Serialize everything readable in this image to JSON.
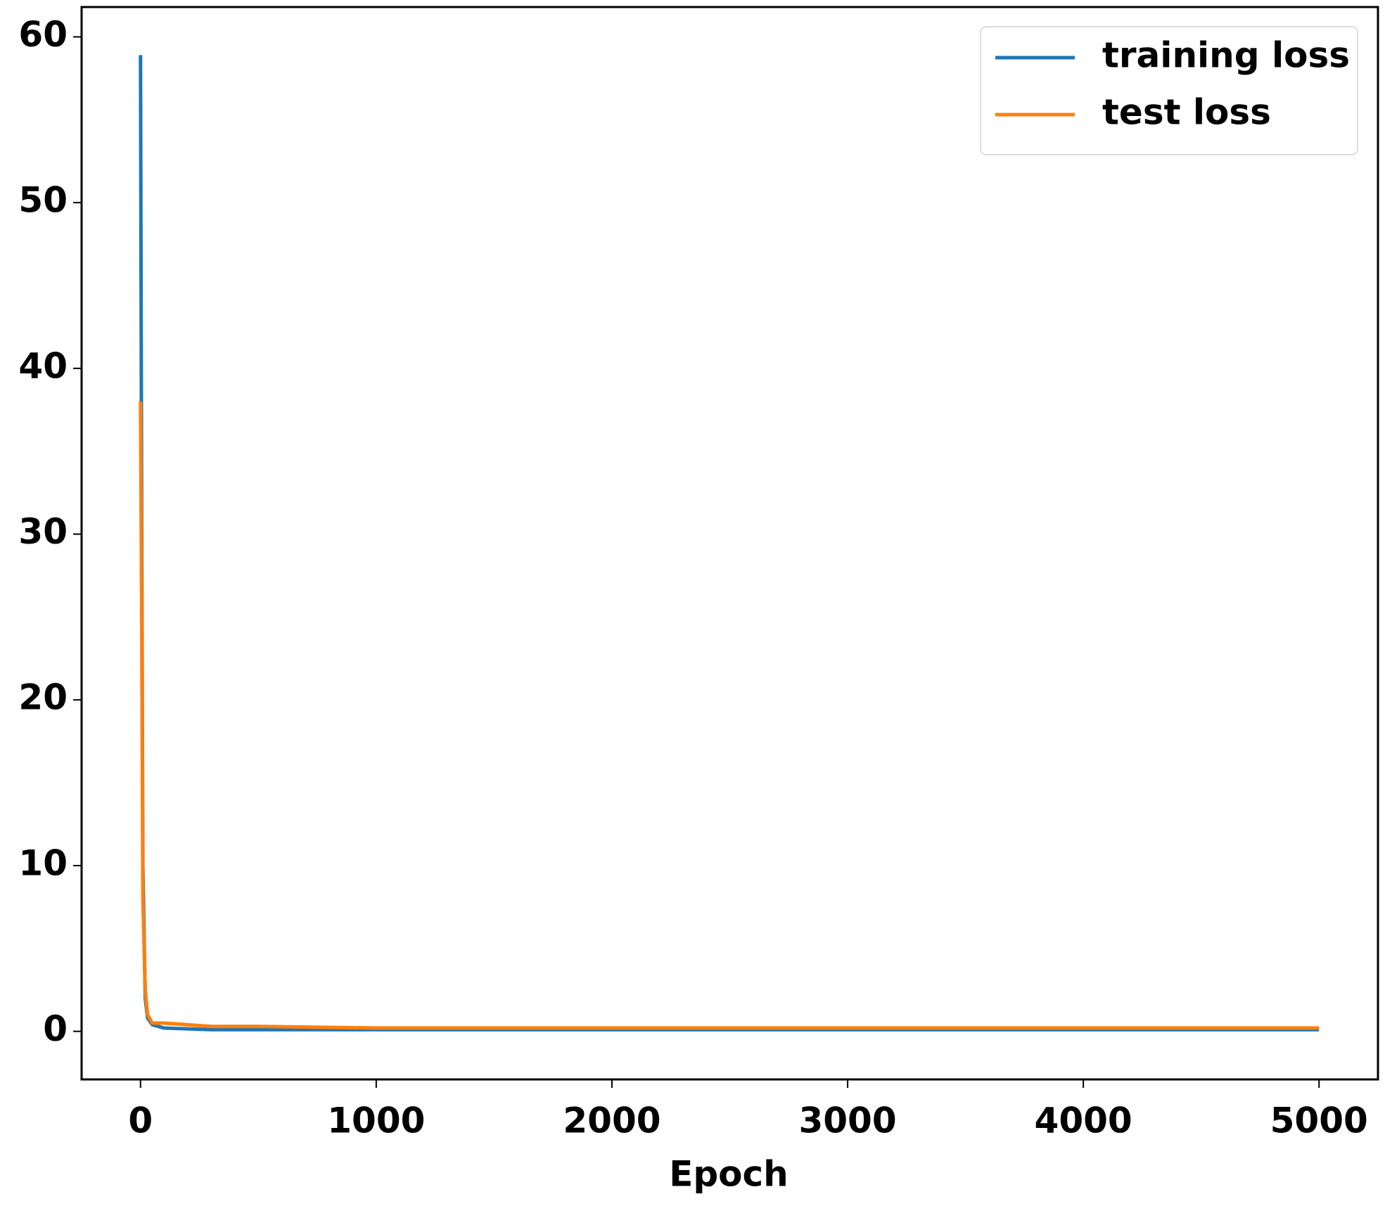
{
  "chart_data": {
    "type": "line",
    "xlabel": "Epoch",
    "x": [
      0,
      5,
      10,
      20,
      30,
      50,
      100,
      200,
      300,
      500,
      1000,
      2000,
      3000,
      4000,
      5000
    ],
    "series": [
      {
        "name": "training loss",
        "color": "#1f77b4",
        "values": [
          58.9,
          30,
          10,
          2,
          0.8,
          0.4,
          0.2,
          0.15,
          0.1,
          0.1,
          0.1,
          0.1,
          0.1,
          0.1,
          0.1
        ]
      },
      {
        "name": "test loss",
        "color": "#ff7f0e",
        "values": [
          38,
          25,
          8,
          2.5,
          1,
          0.5,
          0.5,
          0.4,
          0.3,
          0.3,
          0.2,
          0.2,
          0.2,
          0.2,
          0.2
        ]
      }
    ],
    "xlim": [
      -250,
      5250
    ],
    "xticks": [
      0,
      1000,
      2000,
      3000,
      4000,
      5000
    ],
    "ylim": [
      -2.9,
      61.8
    ],
    "yticks": [
      0,
      10,
      20,
      30,
      40,
      50,
      60
    ],
    "legend": "upper right",
    "grid": false
  }
}
